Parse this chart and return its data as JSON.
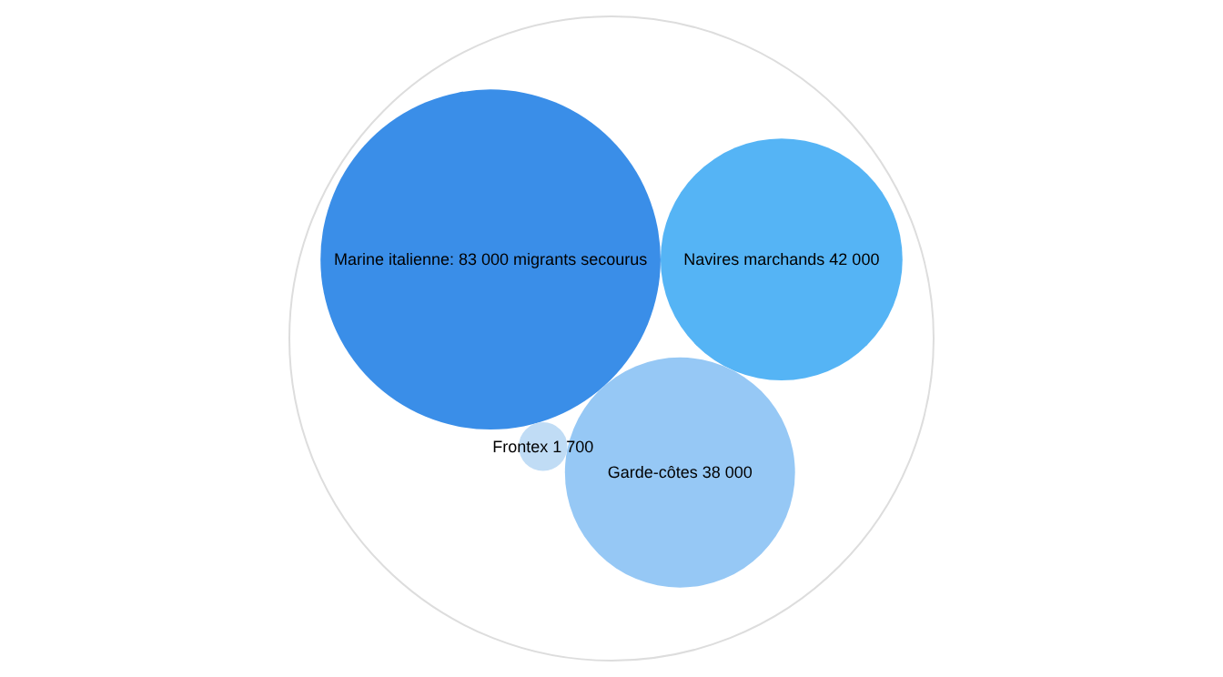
{
  "chart_data": {
    "type": "other",
    "categories": [
      "Marine italienne",
      "Navires marchands",
      "Garde-côtes",
      "Frontex"
    ],
    "values": [
      83000,
      42000,
      38000,
      1700
    ],
    "value_labels": [
      ": 83 000 migrants secourus",
      "42 000",
      "38 000",
      "1 700"
    ],
    "colors": [
      "#3a8ee8",
      "#55b4f5",
      "#96c8f5",
      "#c0dcf5"
    ]
  }
}
